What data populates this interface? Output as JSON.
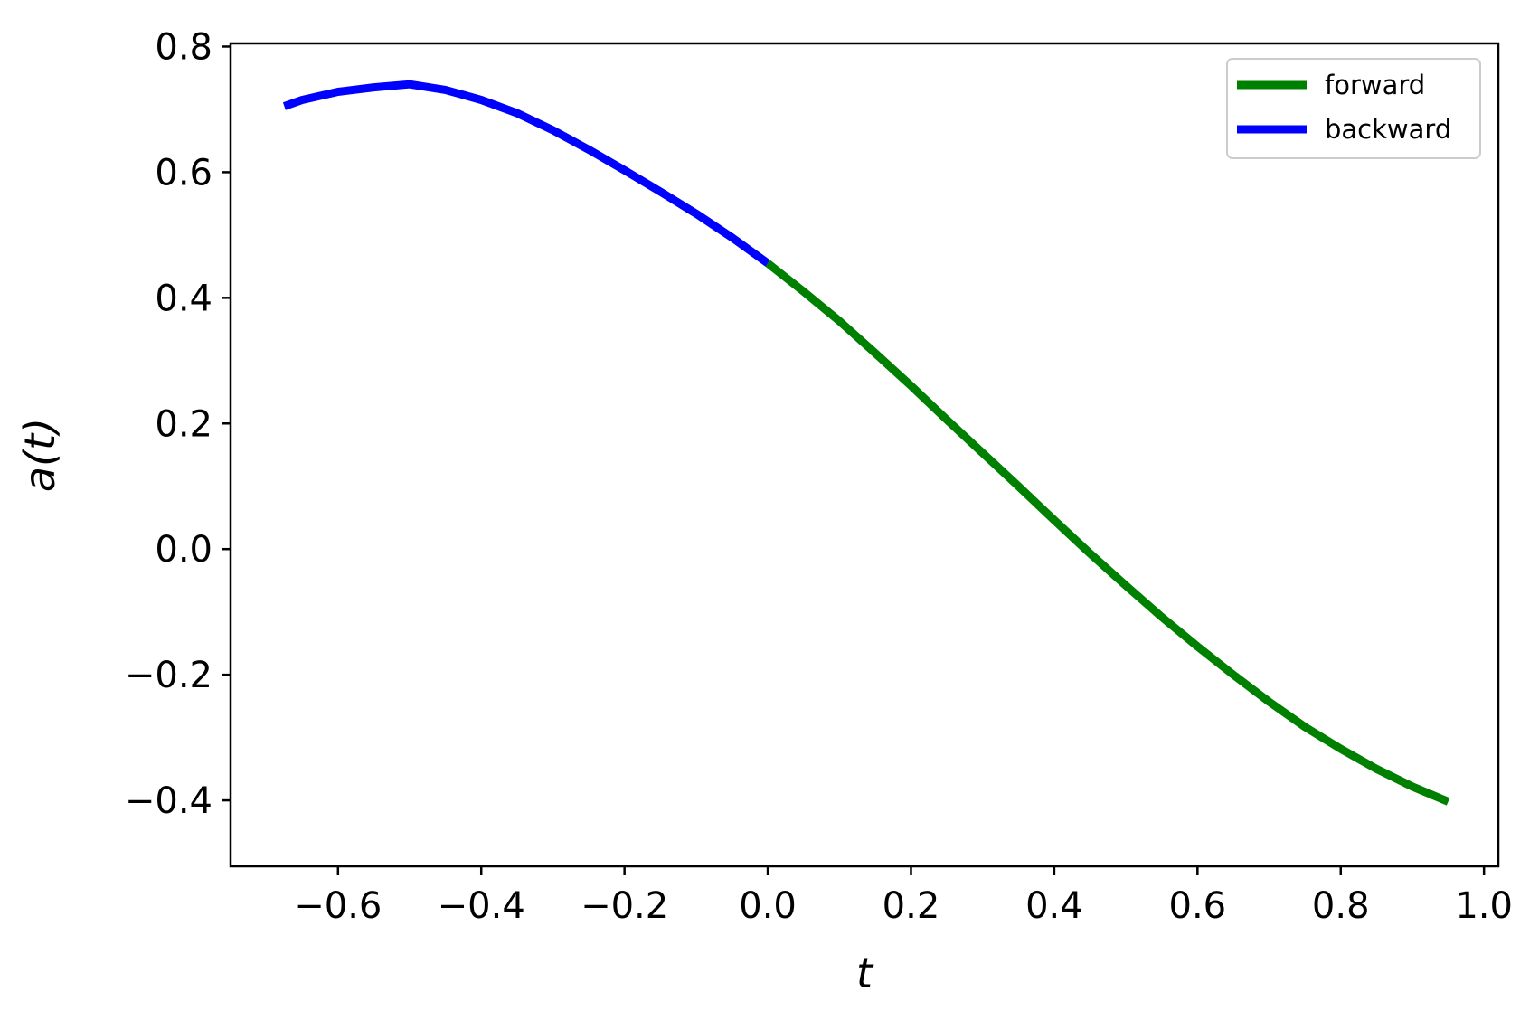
{
  "chart_data": {
    "type": "line",
    "title": "",
    "xlabel": "t",
    "ylabel": "a(t)",
    "xlim": [
      -0.75,
      1.02
    ],
    "ylim": [
      -0.505,
      0.805
    ],
    "xticks": [
      -0.6,
      -0.4,
      -0.2,
      0.0,
      0.2,
      0.4,
      0.6,
      0.8,
      1.0
    ],
    "xtick_labels": [
      "−0.6",
      "−0.4",
      "−0.2",
      "0.0",
      "0.2",
      "0.4",
      "0.6",
      "0.8",
      "1.0"
    ],
    "yticks": [
      -0.4,
      -0.2,
      0.0,
      0.2,
      0.4,
      0.6,
      0.8
    ],
    "ytick_labels": [
      "−0.4",
      "−0.2",
      "0.0",
      "0.2",
      "0.4",
      "0.6",
      "0.8"
    ],
    "grid": false,
    "legend_position": "top-right",
    "series": [
      {
        "name": "forward",
        "color": "#008000",
        "x": [
          0.0,
          0.05,
          0.1,
          0.15,
          0.2,
          0.25,
          0.3,
          0.35,
          0.4,
          0.45,
          0.5,
          0.55,
          0.6,
          0.65,
          0.7,
          0.75,
          0.8,
          0.85,
          0.9,
          0.95
        ],
        "y": [
          0.455,
          0.41,
          0.363,
          0.312,
          0.26,
          0.206,
          0.153,
          0.1,
          0.046,
          -0.007,
          -0.058,
          -0.108,
          -0.155,
          -0.2,
          -0.243,
          -0.283,
          -0.318,
          -0.35,
          -0.378,
          -0.402
        ]
      },
      {
        "name": "backward",
        "color": "#0000ff",
        "x": [
          0.0,
          -0.05,
          -0.1,
          -0.15,
          -0.2,
          -0.25,
          -0.3,
          -0.35,
          -0.4,
          -0.45,
          -0.5,
          -0.55,
          -0.6,
          -0.65,
          -0.675
        ],
        "y": [
          0.455,
          0.496,
          0.534,
          0.569,
          0.603,
          0.636,
          0.667,
          0.694,
          0.715,
          0.731,
          0.74,
          0.735,
          0.728,
          0.715,
          0.705
        ]
      }
    ]
  }
}
